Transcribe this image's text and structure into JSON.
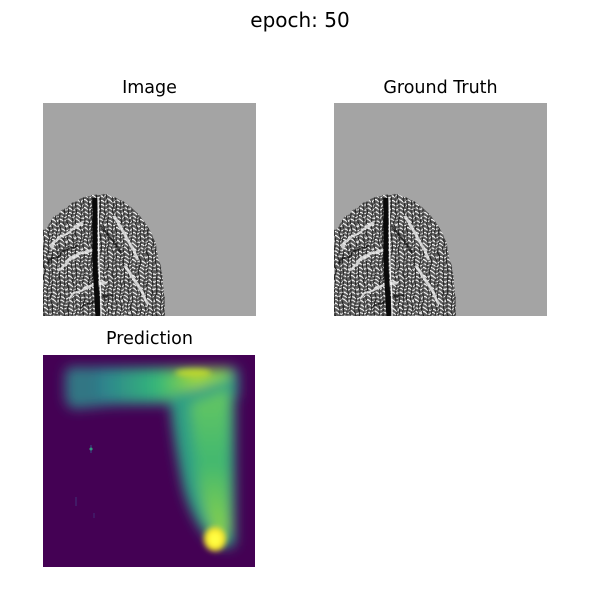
{
  "figure": {
    "suptitle": "epoch: 50"
  },
  "panels": {
    "image": {
      "title": "Image"
    },
    "ground_truth": {
      "title": "Ground Truth"
    },
    "prediction": {
      "title": "Prediction"
    }
  },
  "colors": {
    "background": "#a4a4a4",
    "prediction_background": "#440154",
    "prediction_high": "#fde725",
    "prediction_mid": "#35b779"
  }
}
